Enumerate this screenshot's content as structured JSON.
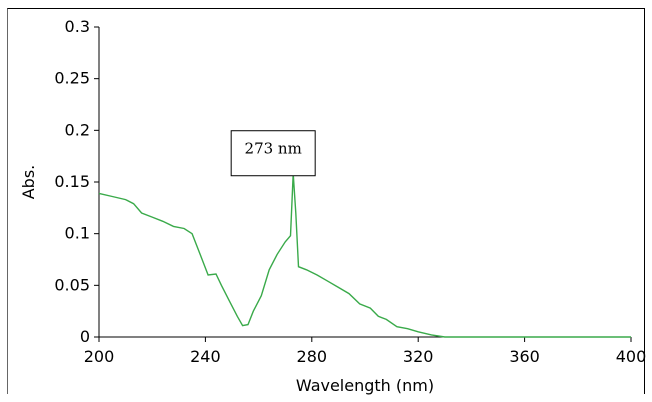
{
  "chart_data": {
    "type": "line",
    "title": "",
    "xlabel": "Wavelength (nm)",
    "ylabel": "Abs.",
    "xlim": [
      200,
      400
    ],
    "ylim": [
      0,
      0.3
    ],
    "x_ticks": [
      200,
      240,
      280,
      320,
      360,
      400
    ],
    "y_ticks": [
      "0",
      "0.05",
      "0.1",
      "0.15",
      "0.2",
      "0.25",
      "0.3"
    ],
    "grid": false,
    "legend": "none",
    "line_color": "#3aaa4a",
    "annotation": {
      "text": "273 nm",
      "x": 273,
      "y": 0.158
    },
    "series": [
      {
        "x": [
          200,
          205,
          210,
          213,
          216,
          220,
          224,
          228,
          232,
          235,
          238,
          241,
          244,
          246,
          249,
          252,
          254,
          256,
          258,
          261,
          264,
          267,
          270,
          272,
          273,
          274,
          275,
          278,
          282,
          286,
          290,
          294,
          298,
          302,
          305,
          308,
          312,
          316,
          320,
          325,
          330,
          333,
          340,
          360,
          380,
          400
        ],
        "y": [
          0.139,
          0.136,
          0.133,
          0.129,
          0.12,
          0.116,
          0.112,
          0.107,
          0.105,
          0.1,
          0.08,
          0.06,
          0.061,
          0.05,
          0.035,
          0.02,
          0.011,
          0.012,
          0.025,
          0.04,
          0.065,
          0.08,
          0.092,
          0.098,
          0.158,
          0.12,
          0.068,
          0.065,
          0.06,
          0.054,
          0.048,
          0.042,
          0.032,
          0.028,
          0.02,
          0.017,
          0.01,
          0.008,
          0.005,
          0.002,
          0.0,
          0.0,
          0.0,
          0.0,
          0.0,
          0.0
        ]
      }
    ]
  }
}
